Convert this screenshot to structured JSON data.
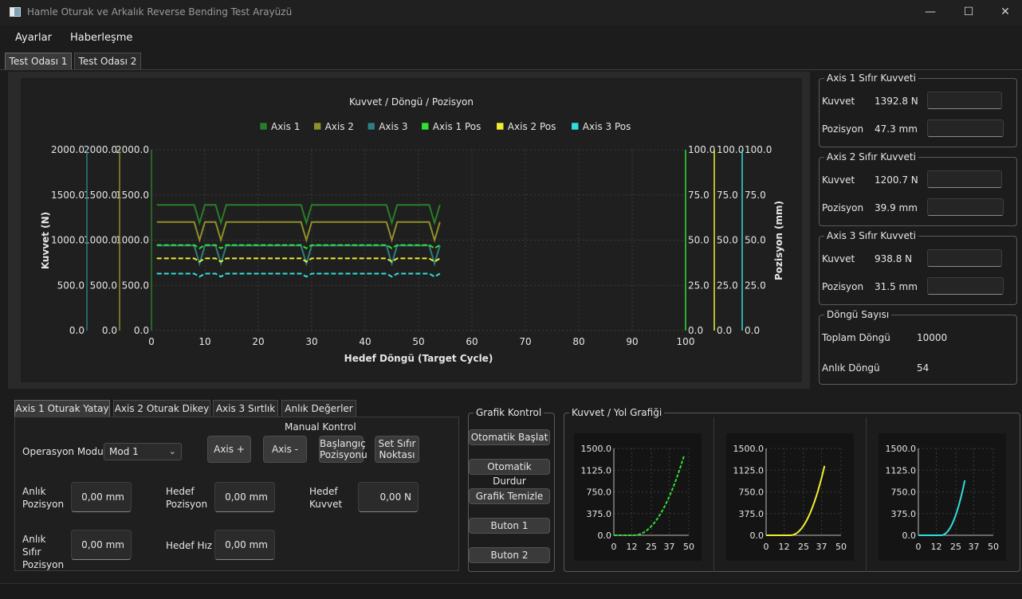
{
  "window": {
    "title": "Hamle Oturak ve Arkalık Reverse Bending Test Arayüzü",
    "minimize": "—",
    "maximize": "☐",
    "close": "✕"
  },
  "menu": [
    "Ayarlar",
    "Haberleşme"
  ],
  "tabs": [
    "Test Odası 1",
    "Test Odası 2"
  ],
  "chart_data": [
    {
      "type": "line",
      "title": "Kuvvet / Döngü / Pozisyon",
      "xlabel": "Hedef Döngü (Target Cycle)",
      "ylabel": "Kuvvet (N)",
      "y2label": "Pozisyon (mm)",
      "xlim": [
        0,
        100
      ],
      "ylim": [
        0,
        2000
      ],
      "y2lim": [
        0,
        100
      ],
      "x_ticks": [
        "0",
        "10",
        "20",
        "30",
        "40",
        "50",
        "60",
        "70",
        "80",
        "90",
        "100"
      ],
      "y_ticks": [
        "0.0",
        "500.0",
        "1000.0",
        "1500.0",
        "2000.0"
      ],
      "y2_ticks": [
        "0.0",
        "25.0",
        "50.0",
        "75.0",
        "100.0"
      ],
      "grid": true,
      "legend": "top",
      "x_end": 54,
      "dip_cycles": [
        9,
        13,
        29,
        45,
        53
      ],
      "series": [
        {
          "name": "Axis 1",
          "color": "#2a7d2a",
          "axis": "left",
          "base": 1390,
          "dip": 1190,
          "dashed": false
        },
        {
          "name": "Axis 2",
          "color": "#8f8f2a",
          "axis": "left",
          "base": 1200,
          "dip": 1000,
          "dashed": false
        },
        {
          "name": "Axis 3",
          "color": "#2f7f7f",
          "axis": "left",
          "base": 940,
          "dip": 740,
          "dashed": false
        },
        {
          "name": "Axis 1 Pos",
          "color": "#33dd33",
          "axis": "right",
          "base": 47.3,
          "dip": 45.5,
          "dashed": true
        },
        {
          "name": "Axis 2 Pos",
          "color": "#eeee33",
          "axis": "right",
          "base": 39.9,
          "dip": 38.1,
          "dashed": true
        },
        {
          "name": "Axis 3 Pos",
          "color": "#33dddd",
          "axis": "right",
          "base": 31.5,
          "dip": 29.8,
          "dashed": true
        }
      ]
    },
    {
      "type": "line",
      "title": "",
      "xlim": [
        0,
        50
      ],
      "ylim": [
        0,
        1500
      ],
      "x_ticks": [
        "0",
        "12",
        "25",
        "37",
        "50"
      ],
      "y_ticks": [
        "0.0",
        "375.0",
        "750.0",
        "1125.0",
        "1500.0"
      ],
      "series": [
        {
          "name": "",
          "color": "#33dd33",
          "x_start": 13,
          "x_end": 47,
          "y_end": 1390,
          "dashed": true
        }
      ]
    },
    {
      "type": "line",
      "title": "",
      "xlim": [
        0,
        50
      ],
      "ylim": [
        0,
        1500
      ],
      "x_ticks": [
        "0",
        "12",
        "25",
        "37",
        "50"
      ],
      "y_ticks": [
        "0.0",
        "375.0",
        "750.0",
        "1125.0",
        "1500.0"
      ],
      "series": [
        {
          "name": "",
          "color": "#eeee33",
          "x_start": 16,
          "x_end": 39,
          "y_end": 1200,
          "dashed": false
        }
      ]
    },
    {
      "type": "line",
      "title": "",
      "xlim": [
        0,
        50
      ],
      "ylim": [
        0,
        1500
      ],
      "x_ticks": [
        "0",
        "12",
        "25",
        "37",
        "50"
      ],
      "y_ticks": [
        "0.0",
        "375.0",
        "750.0",
        "1125.0",
        "1500.0"
      ],
      "series": [
        {
          "name": "",
          "color": "#33dddd",
          "x_start": 15,
          "x_end": 31,
          "y_end": 950,
          "dashed": false
        }
      ]
    }
  ],
  "axis_cards": [
    {
      "title": "Axis 1 Sıfır Kuvveti",
      "kuvvet_label": "Kuvvet",
      "kuvvet": "1392.8 N",
      "pozisyon_label": "Pozisyon",
      "pozisyon": "47.3 mm"
    },
    {
      "title": "Axis 2 Sıfır Kuvveti",
      "kuvvet_label": "Kuvvet",
      "kuvvet": "1200.7 N",
      "pozisyon_label": "Pozisyon",
      "pozisyon": "39.9 mm"
    },
    {
      "title": "Axis 3 Sıfır Kuvveti",
      "kuvvet_label": "Kuvvet",
      "kuvvet": "938.8 N",
      "pozisyon_label": "Pozisyon",
      "pozisyon": "31.5 mm"
    }
  ],
  "cycle": {
    "title": "Döngü Sayısı",
    "total_label": "Toplam Döngü",
    "total": "10000",
    "instant_label": "Anlık Döngü",
    "instant": "54"
  },
  "sub_tabs": [
    "Axis 1 Oturak Yatay",
    "Axis 2 Oturak Dikey",
    "Axis 3 Sırtlık",
    "Anlık Değerler"
  ],
  "manual": {
    "title": "Manual Kontrol",
    "mode_label": "Operasyon Modu:",
    "mode_value": "Mod 1",
    "axis_plus": "Axis +",
    "axis_minus": "Axis -",
    "start_pos": "Başlangıç Pozisyonu",
    "set_zero": "Set Sıfır Noktası",
    "anlik_pozisyon_label": "Anlık Pozisyon",
    "anlik_pozisyon": "0,00 mm",
    "hedef_pozisyon_label": "Hedef Pozisyon",
    "hedef_pozisyon": "0,00 mm",
    "hedef_kuvvet_label": "Hedef Kuvvet",
    "hedef_kuvvet": "0,00 N",
    "anlik_sifir_label": "Anlık Sıfır Pozisyon",
    "anlik_sifir": "0,00 mm",
    "hedef_hiz_label": "Hedef Hız",
    "hedef_hiz": "0,00 mm"
  },
  "graph_control": {
    "title": "Grafik Kontrol",
    "buttons": [
      "Otomatik Başlat",
      "Otomatik Durdur",
      "Grafik Temizle",
      "Buton 1",
      "Buton 2"
    ]
  },
  "force_path": {
    "title": "Kuvvet / Yol Grafiği"
  }
}
